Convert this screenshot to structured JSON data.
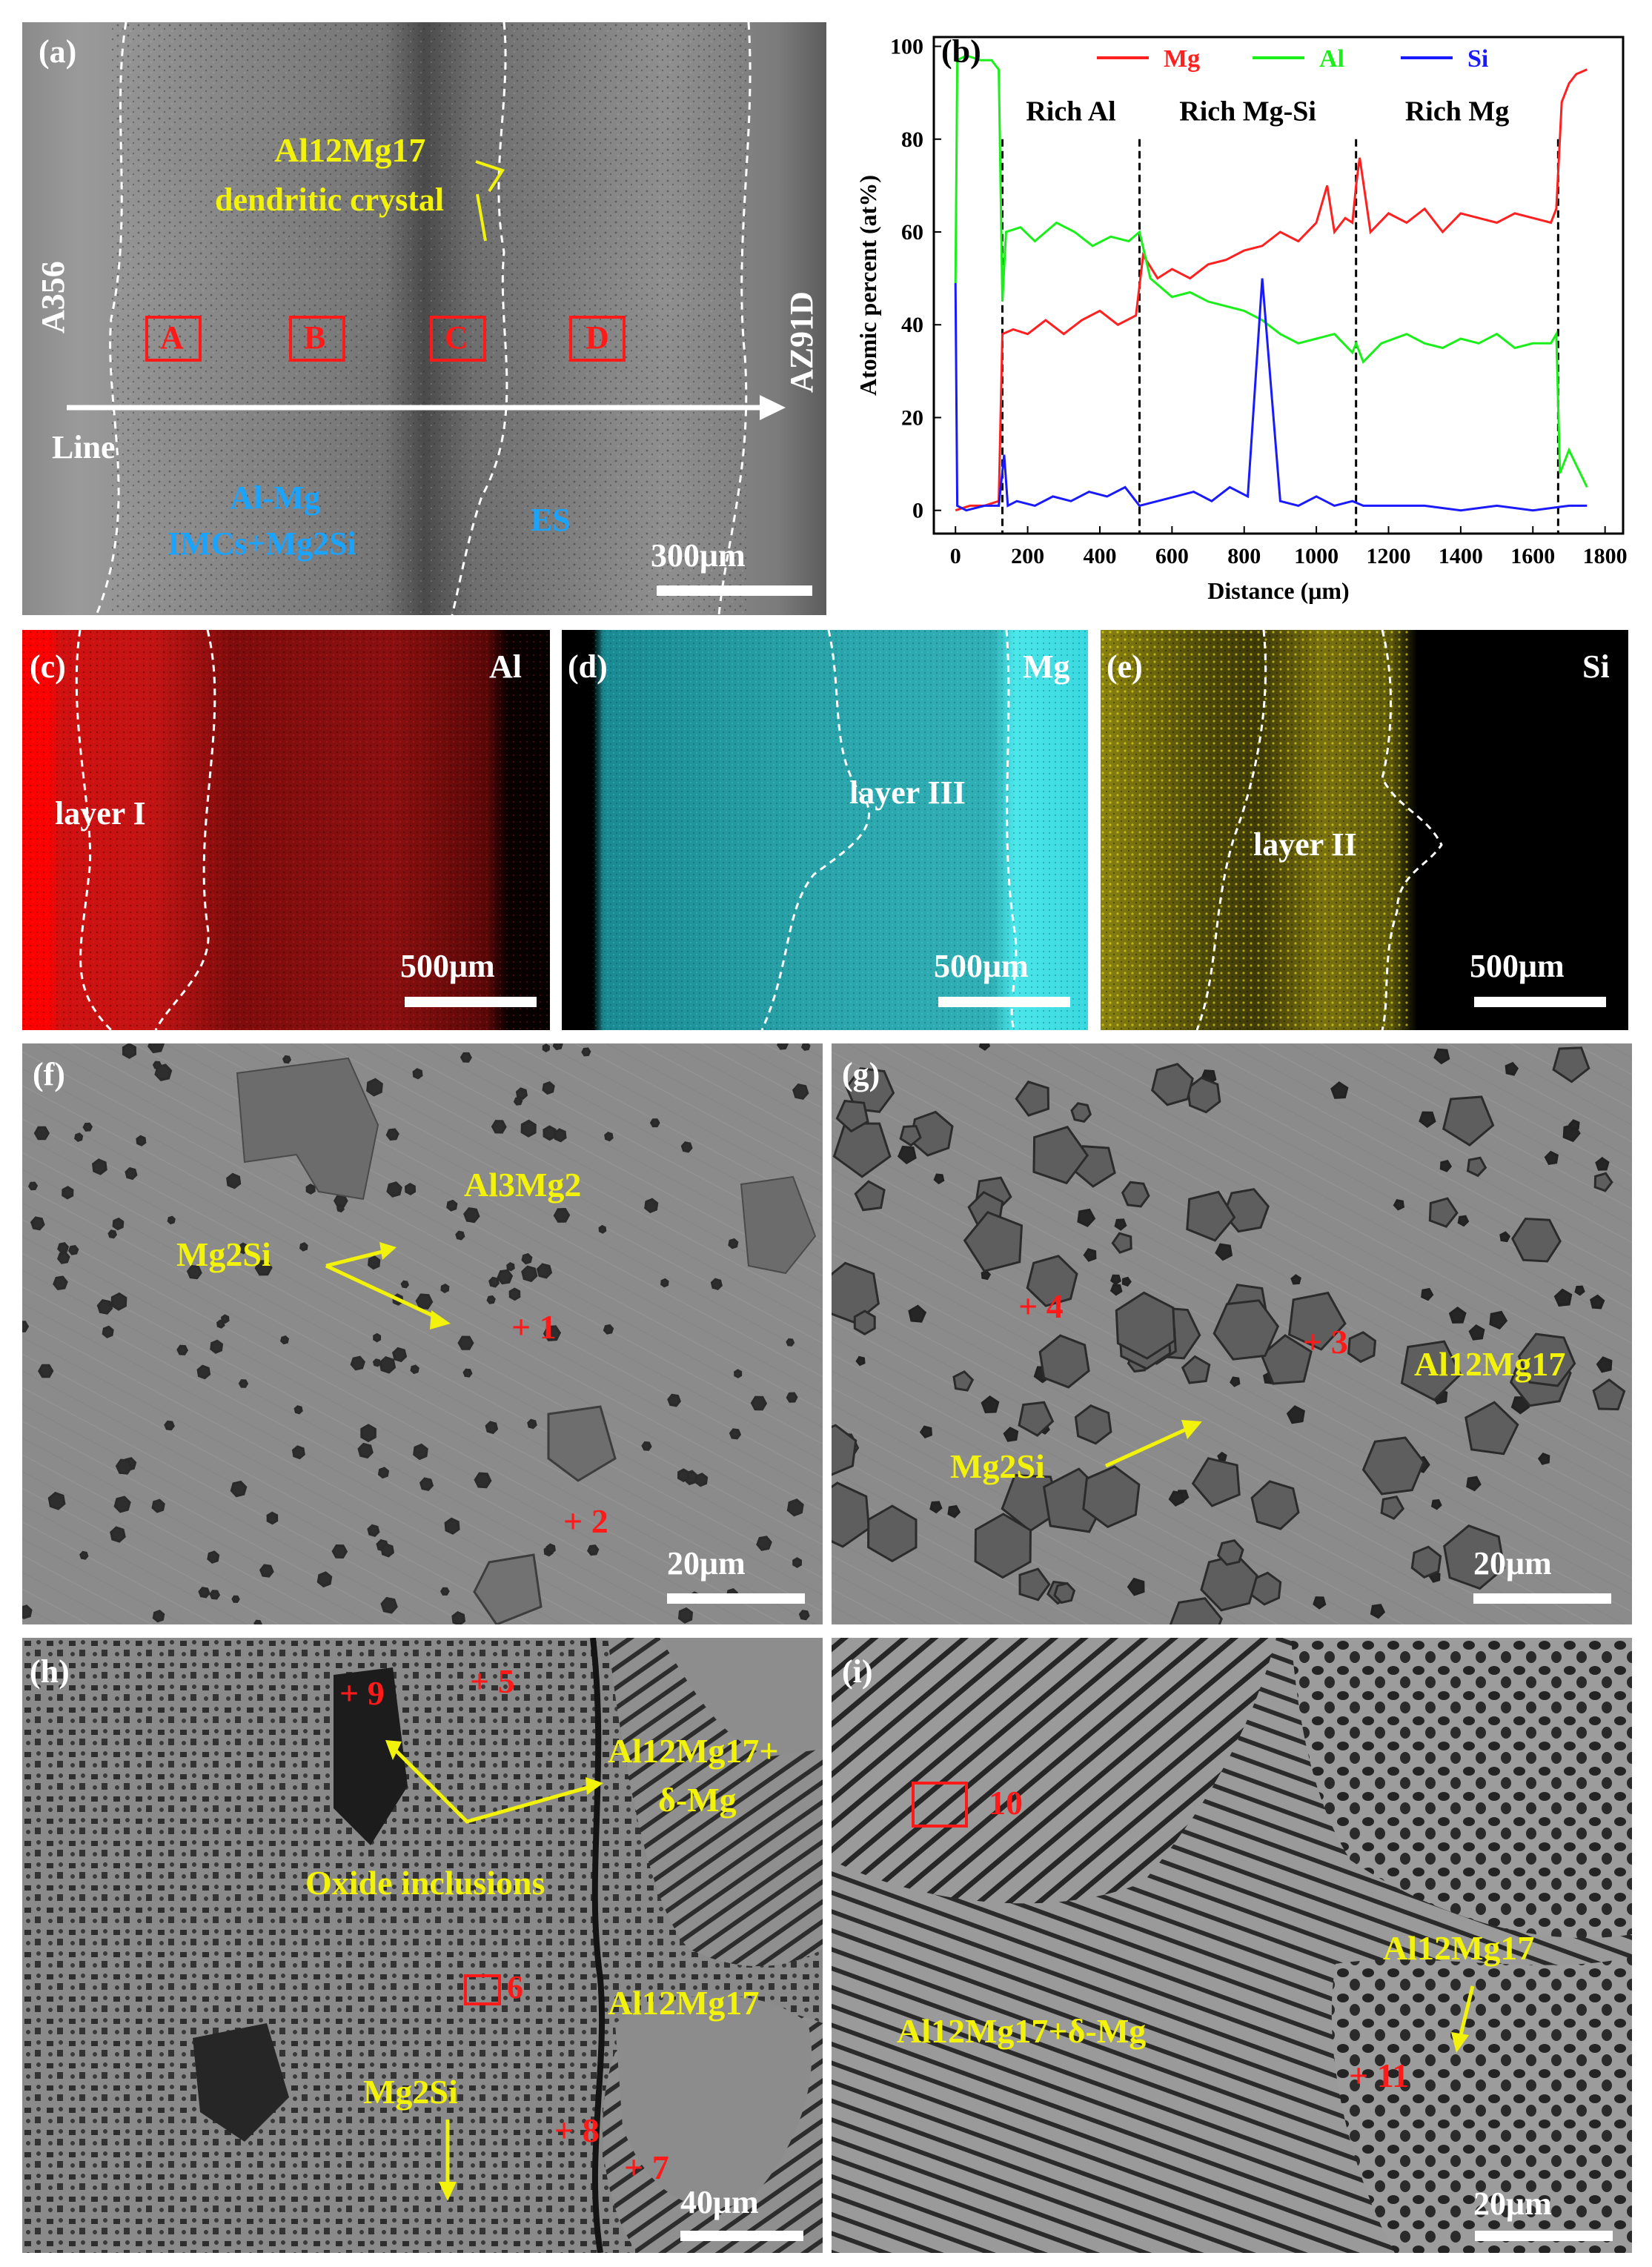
{
  "panels": {
    "a": {
      "label": "(a)",
      "left_alloy": "A356",
      "right_alloy": "AZ91D",
      "dendrite_label_line1": "Al12Mg17",
      "dendrite_label_line2": "dendritic crystal",
      "boxes": [
        "A",
        "B",
        "C",
        "D"
      ],
      "line_label": "Line",
      "imc_label_line1": "Al-Mg",
      "imc_label_line2": "IMCs+Mg2Si",
      "es_label": "ES",
      "scale": "300μm"
    },
    "b": {
      "label": "(b)",
      "regions": [
        "Rich Al",
        "Rich Mg-Si",
        "Rich Mg"
      ]
    },
    "c": {
      "label": "(c)",
      "element": "Al",
      "layer": "layer I",
      "scale": "500μm"
    },
    "d": {
      "label": "(d)",
      "element": "Mg",
      "layer": "layer III",
      "scale": "500μm"
    },
    "e": {
      "label": "(e)",
      "element": "Si",
      "layer": "layer II",
      "scale": "500μm"
    },
    "f": {
      "label": "(f)",
      "phase_main": "Al3Mg2",
      "phase_particle": "Mg2Si",
      "points": [
        "+ 1",
        "+ 2"
      ],
      "scale": "20μm"
    },
    "g": {
      "label": "(g)",
      "phase_main": "Al12Mg17",
      "phase_particle": "Mg2Si",
      "points": [
        "+ 4",
        "+ 3"
      ],
      "scale": "20μm"
    },
    "h": {
      "label": "(h)",
      "points": [
        "+ 9",
        "+ 5",
        "6",
        "+ 8",
        "+ 7"
      ],
      "eutectic_line1": "Al12Mg17+",
      "eutectic_line2": "δ-Mg",
      "oxide": "Oxide inclusions",
      "phase_main": "Al12Mg17",
      "phase_particle": "Mg2Si",
      "scale": "40μm"
    },
    "i": {
      "label": "(i)",
      "box_point": "10",
      "phase_main": "Al12Mg17",
      "eutectic": "Al12Mg17+δ-Mg",
      "point": "+ 11",
      "scale": "20μm"
    }
  },
  "chart_data": {
    "type": "line",
    "title": "",
    "xlabel": "Distance (μm)",
    "ylabel": "Atomic percent (at%)",
    "xlim": [
      -60,
      1850
    ],
    "ylim": [
      -5,
      102
    ],
    "xticks": [
      0,
      200,
      400,
      600,
      800,
      1000,
      1200,
      1400,
      1600,
      1800
    ],
    "yticks": [
      0,
      20,
      40,
      60,
      80,
      100
    ],
    "legend": "top",
    "boundaries": [
      130,
      510,
      1110,
      1670
    ],
    "region_labels": [
      "Rich Al",
      "Rich Mg-Si",
      "Rich Mg"
    ],
    "series": [
      {
        "name": "Mg",
        "color": "#ff2020",
        "x": [
          0,
          40,
          80,
          120,
          130,
          160,
          200,
          250,
          300,
          350,
          400,
          450,
          500,
          520,
          560,
          600,
          650,
          700,
          750,
          800,
          850,
          900,
          950,
          1000,
          1030,
          1050,
          1080,
          1100,
          1110,
          1120,
          1150,
          1200,
          1250,
          1300,
          1350,
          1400,
          1450,
          1500,
          1550,
          1600,
          1650,
          1665,
          1680,
          1700,
          1720,
          1750
        ],
        "y": [
          0,
          1,
          1,
          2,
          38,
          39,
          38,
          41,
          38,
          41,
          43,
          40,
          42,
          55,
          50,
          52,
          50,
          53,
          54,
          56,
          57,
          60,
          58,
          62,
          70,
          60,
          63,
          62,
          70,
          76,
          60,
          64,
          62,
          65,
          60,
          64,
          63,
          62,
          64,
          63,
          62,
          65,
          88,
          92,
          94,
          95
        ]
      },
      {
        "name": "Al",
        "color": "#1aef1a",
        "x": [
          0,
          5,
          30,
          70,
          100,
          120,
          130,
          140,
          180,
          220,
          280,
          330,
          380,
          430,
          480,
          510,
          540,
          600,
          650,
          700,
          750,
          800,
          850,
          900,
          950,
          1000,
          1050,
          1100,
          1110,
          1130,
          1180,
          1250,
          1300,
          1350,
          1400,
          1450,
          1500,
          1550,
          1600,
          1650,
          1665,
          1675,
          1700,
          1750
        ],
        "y": [
          49,
          97,
          98,
          97,
          97,
          95,
          45,
          60,
          61,
          58,
          62,
          60,
          57,
          59,
          58,
          60,
          50,
          46,
          47,
          45,
          44,
          43,
          41,
          38,
          36,
          37,
          38,
          34,
          36,
          32,
          36,
          38,
          36,
          35,
          37,
          36,
          38,
          35,
          36,
          36,
          38,
          8,
          13,
          5
        ]
      },
      {
        "name": "Si",
        "color": "#1a1aff",
        "x": [
          0,
          5,
          30,
          80,
          120,
          135,
          145,
          170,
          220,
          270,
          320,
          370,
          420,
          470,
          510,
          560,
          610,
          660,
          710,
          760,
          810,
          850,
          900,
          950,
          1000,
          1050,
          1100,
          1130,
          1200,
          1300,
          1400,
          1500,
          1600,
          1700,
          1750
        ],
        "y": [
          49,
          1,
          0,
          1,
          1,
          12,
          1,
          2,
          1,
          3,
          2,
          4,
          3,
          5,
          1,
          2,
          3,
          4,
          2,
          5,
          3,
          50,
          2,
          1,
          3,
          1,
          2,
          1,
          1,
          1,
          0,
          1,
          0,
          1,
          1
        ]
      }
    ]
  }
}
